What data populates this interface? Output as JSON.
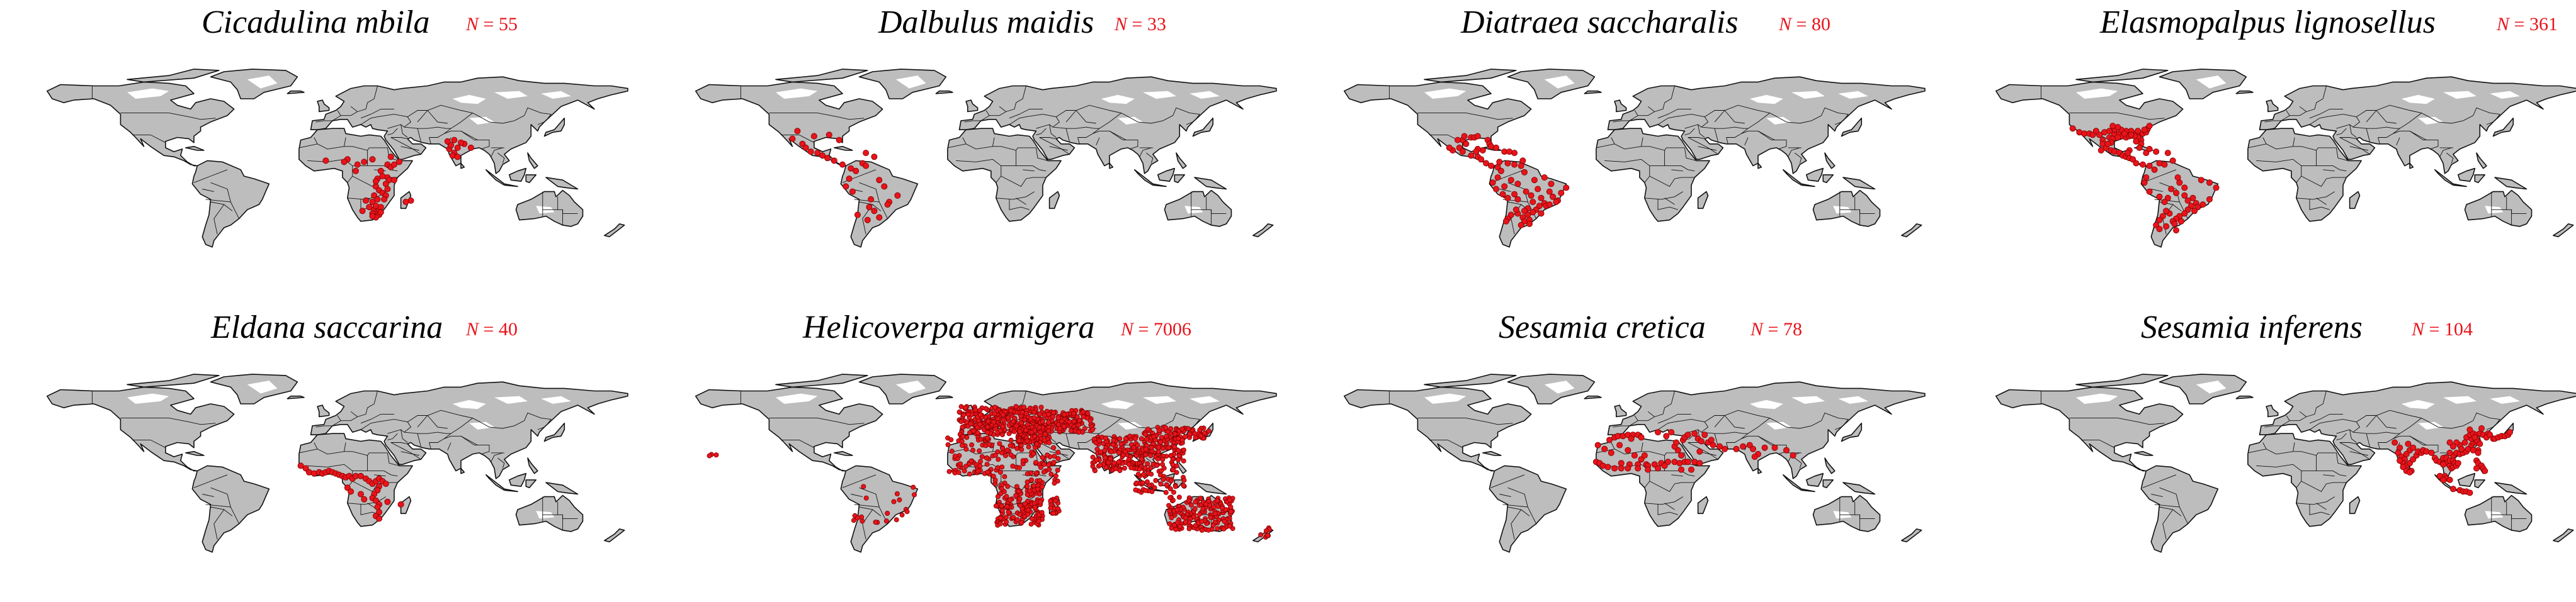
{
  "figure": {
    "panels": [
      {
        "species": "Cicadulina mbila",
        "n_label": "N",
        "n_value": "55"
      },
      {
        "species": "Dalbulus maidis",
        "n_label": "N",
        "n_value": "33"
      },
      {
        "species": "Diatraea saccharalis",
        "n_label": "N",
        "n_value": "80"
      },
      {
        "species": "Elasmopalpus lignosellus",
        "n_label": "N",
        "n_value": "361"
      },
      {
        "species": "Eldana saccarina",
        "n_label": "N",
        "n_value": "40"
      },
      {
        "species": "Helicoverpa armigera",
        "n_label": "N",
        "n_value": "7006"
      },
      {
        "species": "Sesamia cretica",
        "n_label": "N",
        "n_value": "78"
      },
      {
        "species": "Sesamia inferens",
        "n_label": "N",
        "n_value": "104"
      }
    ]
  },
  "style": {
    "land_color": "#bdbdbd",
    "border_color": "#111111",
    "point_color": "#e8141b",
    "point_outline": "#7a0000"
  }
}
